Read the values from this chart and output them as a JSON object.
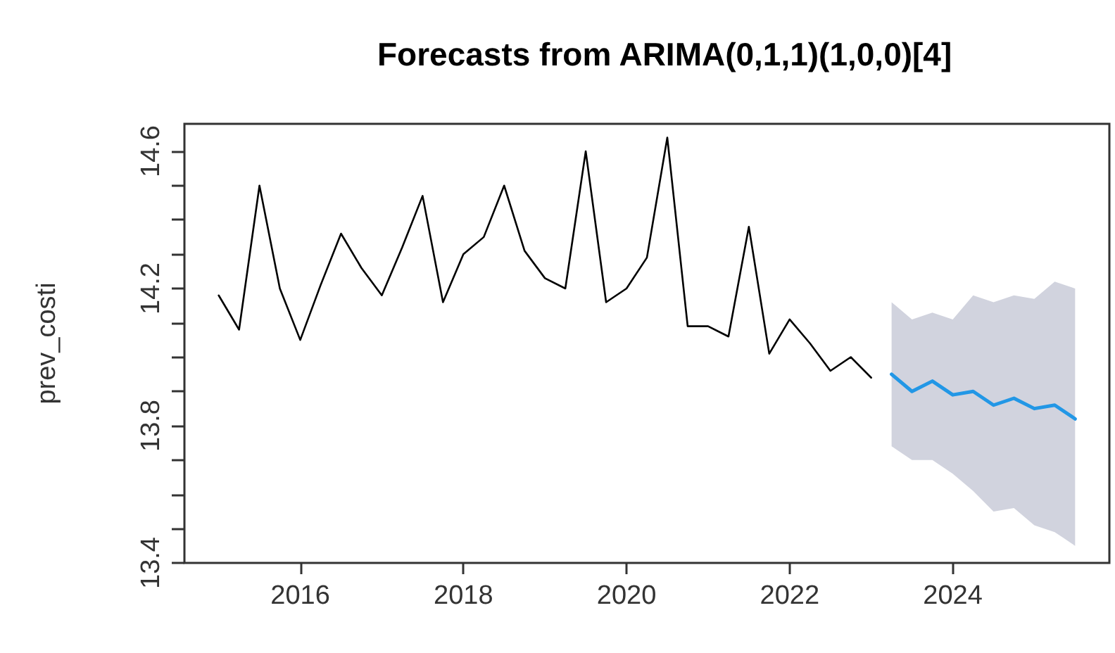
{
  "chart_data": {
    "type": "line",
    "title": "Forecasts from ARIMA(0,1,1)(1,0,0)[4]",
    "ylabel": "prev_costi",
    "xlim": [
      2014.58,
      2025.92
    ],
    "xticks": [
      2016,
      2018,
      2020,
      2022,
      2024
    ],
    "ylim": [
      13.4,
      14.68
    ],
    "yticks": [
      13.4,
      {
        "value": 13.5,
        "label": null
      },
      {
        "value": 13.6,
        "label": null
      },
      {
        "value": 13.7,
        "label": null
      },
      13.8,
      {
        "value": 13.9,
        "label": null
      },
      {
        "value": 14.0,
        "label": null
      },
      {
        "value": 14.1,
        "label": null
      },
      14.2,
      {
        "value": 14.3,
        "label": null
      },
      {
        "value": 14.4,
        "label": null
      },
      {
        "value": 14.5,
        "label": null
      },
      14.6
    ],
    "grid": false,
    "marker": "none",
    "line_style": "solid",
    "series": [
      {
        "color": "#000000",
        "x": [
          2015,
          2015.25,
          2015.5,
          2015.75,
          2016,
          2016.25,
          2016.5,
          2016.75,
          2017,
          2017.25,
          2017.5,
          2017.75,
          2018,
          2018.25,
          2018.5,
          2018.75,
          2019,
          2019.25,
          2019.5,
          2019.75,
          2020,
          2020.25,
          2020.5,
          2020.75,
          2021,
          2021.25,
          2021.5,
          2021.75,
          2022,
          2022.25,
          2022.5,
          2022.75,
          2023
        ],
        "values": [
          14.18,
          14.08,
          14.5,
          14.2,
          14.05,
          14.21,
          14.36,
          14.26,
          14.18,
          14.32,
          14.47,
          14.16,
          14.3,
          14.35,
          14.5,
          14.31,
          14.23,
          14.2,
          14.6,
          14.16,
          14.2,
          14.29,
          14.64,
          14.09,
          14.09,
          14.06,
          14.38,
          14.01,
          14.11,
          14.04,
          13.96,
          14.0,
          13.94
        ]
      },
      {
        "color": "#2297e6",
        "x": [
          2023.25,
          2023.5,
          2023.75,
          2024,
          2024.25,
          2024.5,
          2024.75,
          2025,
          2025.25,
          2025.5
        ],
        "values": [
          13.95,
          13.9,
          13.93,
          13.89,
          13.9,
          13.86,
          13.88,
          13.85,
          13.86,
          13.82
        ],
        "lower": [
          13.74,
          13.7,
          13.7,
          13.66,
          13.61,
          13.55,
          13.56,
          13.51,
          13.49,
          13.45
        ],
        "upper": [
          14.16,
          14.11,
          14.13,
          14.11,
          14.18,
          14.16,
          14.18,
          14.17,
          14.22,
          14.2
        ]
      }
    ]
  }
}
